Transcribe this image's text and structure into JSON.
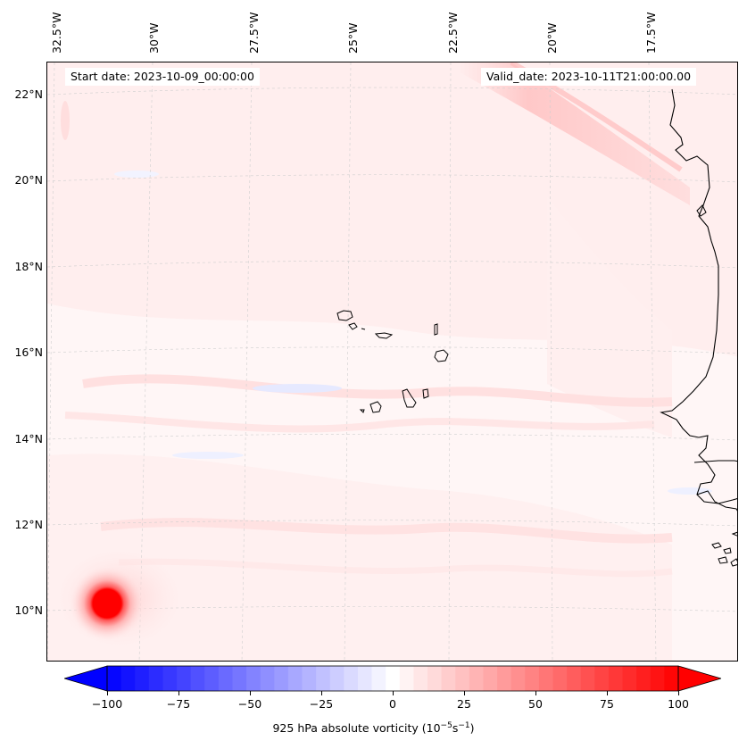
{
  "map": {
    "start_date": "Start date: 2023-10-09_00:00:00",
    "valid_date": "Valid_date: 2023-10-11T21:00:00.00",
    "longitude_labels": [
      "32.5°W",
      "30°W",
      "27.5°W",
      "25°W",
      "22.5°W",
      "20°W",
      "17.5°W"
    ],
    "latitude_labels": [
      "22°N",
      "20°N",
      "18°N",
      "16°N",
      "14°N",
      "12°N",
      "10°N"
    ],
    "colors": {
      "background_field": "#fff7f7",
      "coastline": "#000000",
      "gridline": "#c8c8c8",
      "cyclone_core": "#ff0000"
    }
  },
  "colorbar": {
    "title_prefix": "925 hPa absolute vorticity (10",
    "title_exp1": "−5",
    "title_mid": "s",
    "title_exp2": "−1",
    "title_suffix": ")",
    "ticks": [
      "−100",
      "−75",
      "−50",
      "−25",
      "0",
      "25",
      "50",
      "75",
      "100"
    ],
    "min": -100,
    "max": 100,
    "colormap": "bwr"
  }
}
